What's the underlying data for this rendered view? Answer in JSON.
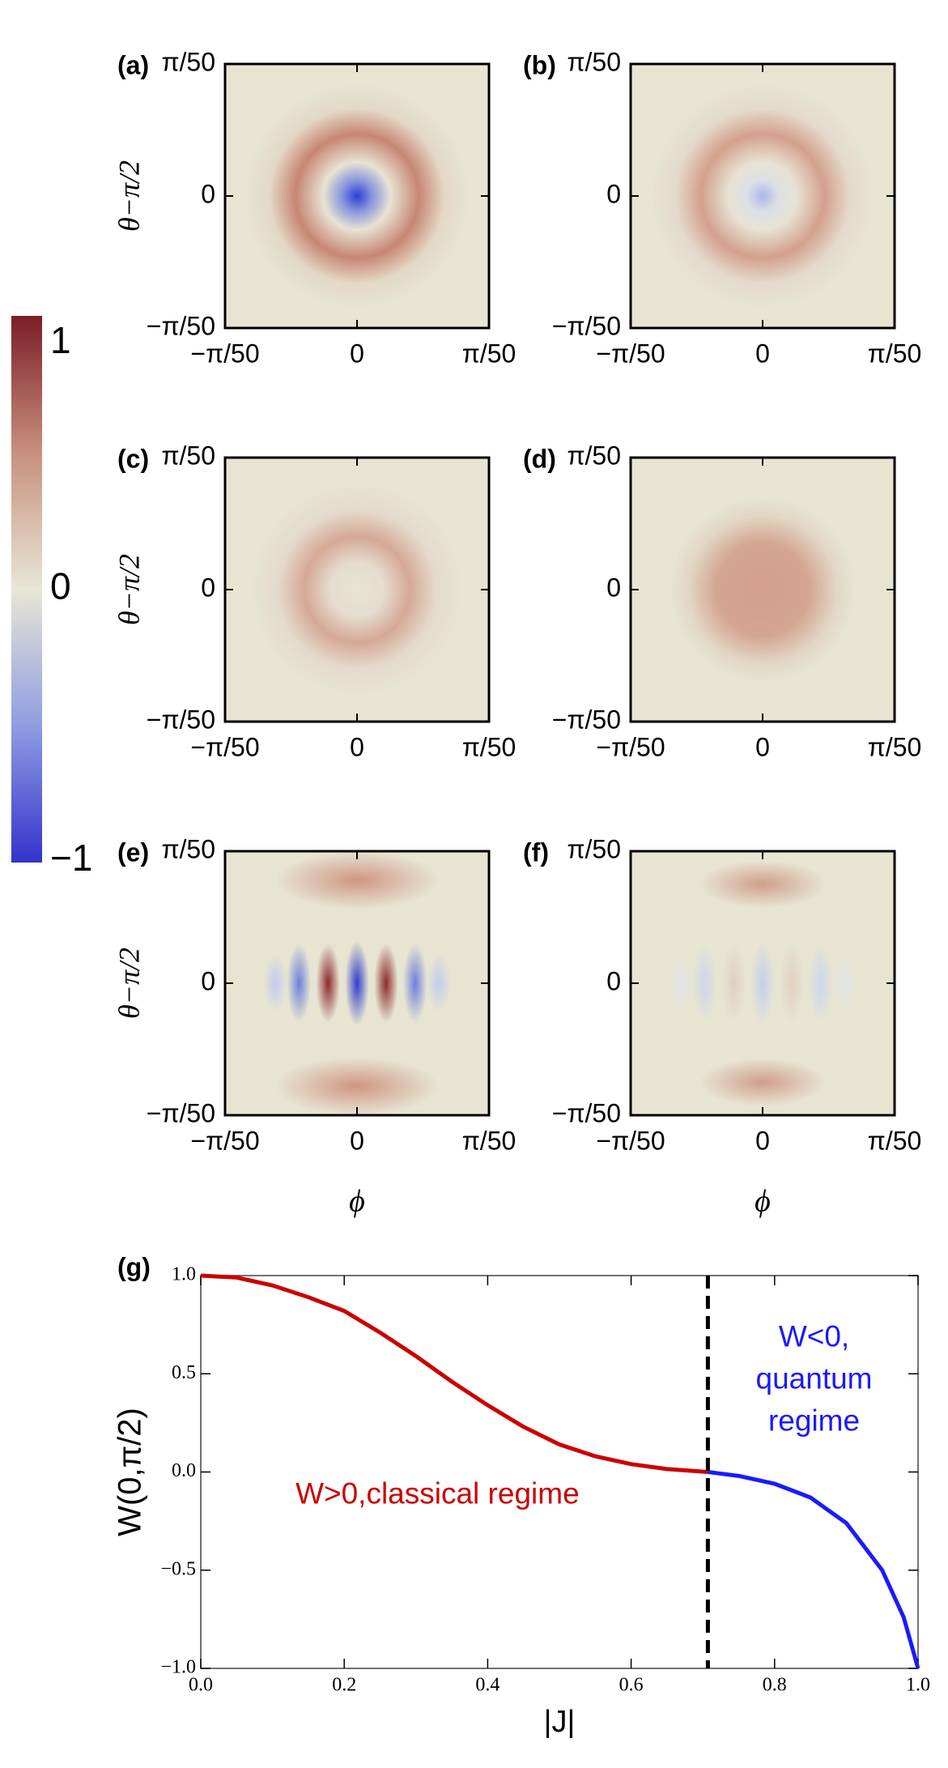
{
  "colorbar": {
    "lim": [
      -1,
      1
    ],
    "ticks": [
      1,
      0,
      {
        "value": -1,
        "label": "−1"
      }
    ]
  },
  "chart_data": [
    {
      "type": "heatmap",
      "panel_label": "(a)",
      "ylabel": "θ−π/2",
      "xlim": [
        -0.0628,
        0.0628
      ],
      "ylim": [
        -0.0628,
        0.0628
      ],
      "xticks": [
        {
          "value": -0.0628,
          "label": "−π/50"
        },
        0,
        {
          "value": 0.0628,
          "label": "π/50"
        }
      ],
      "yticks": [
        {
          "value": -0.0628,
          "label": "−π/50"
        },
        0,
        {
          "value": 0.0628,
          "label": "π/50"
        }
      ]
    },
    {
      "type": "heatmap",
      "panel_label": "(b)",
      "xlim": [
        -0.0628,
        0.0628
      ],
      "ylim": [
        -0.0628,
        0.0628
      ],
      "xticks": [
        {
          "value": -0.0628,
          "label": "−π/50"
        },
        0,
        {
          "value": 0.0628,
          "label": "π/50"
        }
      ],
      "yticks": [
        {
          "value": -0.0628,
          "label": "−π/50"
        },
        0,
        {
          "value": 0.0628,
          "label": "π/50"
        }
      ]
    },
    {
      "type": "heatmap",
      "panel_label": "(c)",
      "ylabel": "θ−π/2",
      "xlim": [
        -0.0628,
        0.0628
      ],
      "ylim": [
        -0.0628,
        0.0628
      ],
      "xticks": [
        {
          "value": -0.0628,
          "label": "−π/50"
        },
        0,
        {
          "value": 0.0628,
          "label": "π/50"
        }
      ],
      "yticks": [
        {
          "value": -0.0628,
          "label": "−π/50"
        },
        0,
        {
          "value": 0.0628,
          "label": "π/50"
        }
      ]
    },
    {
      "type": "heatmap",
      "panel_label": "(d)",
      "xlim": [
        -0.0628,
        0.0628
      ],
      "ylim": [
        -0.0628,
        0.0628
      ],
      "xticks": [
        {
          "value": -0.0628,
          "label": "−π/50"
        },
        0,
        {
          "value": 0.0628,
          "label": "π/50"
        }
      ],
      "yticks": [
        {
          "value": -0.0628,
          "label": "−π/50"
        },
        0,
        {
          "value": 0.0628,
          "label": "π/50"
        }
      ]
    },
    {
      "type": "heatmap",
      "panel_label": "(e)",
      "ylabel": "θ−π/2",
      "xlabel": "ϕ",
      "xlim": [
        -0.0628,
        0.0628
      ],
      "ylim": [
        -0.0628,
        0.0628
      ],
      "xticks": [
        {
          "value": -0.0628,
          "label": "−π/50"
        },
        0,
        {
          "value": 0.0628,
          "label": "π/50"
        }
      ],
      "yticks": [
        {
          "value": -0.0628,
          "label": "−π/50"
        },
        0,
        {
          "value": 0.0628,
          "label": "π/50"
        }
      ]
    },
    {
      "type": "heatmap",
      "panel_label": "(f)",
      "xlabel": "ϕ",
      "xlim": [
        -0.0628,
        0.0628
      ],
      "ylim": [
        -0.0628,
        0.0628
      ],
      "xticks": [
        {
          "value": -0.0628,
          "label": "−π/50"
        },
        0,
        {
          "value": 0.0628,
          "label": "π/50"
        }
      ],
      "yticks": [
        {
          "value": -0.0628,
          "label": "−π/50"
        },
        0,
        {
          "value": 0.0628,
          "label": "π/50"
        }
      ]
    },
    {
      "type": "line",
      "panel_label": "(g)",
      "xlabel": "|J|",
      "ylabel": "W(0,π/2)",
      "xlim": [
        0,
        1
      ],
      "ylim": [
        -1,
        1
      ],
      "xticks": [
        {
          "value": 0,
          "label": "0.0"
        },
        0.2,
        0.4,
        0.6,
        0.8,
        {
          "value": 1,
          "label": "1.0"
        }
      ],
      "yticks": [
        {
          "value": -1,
          "label": "−1.0"
        },
        {
          "value": -0.5,
          "label": "−0.5"
        },
        {
          "value": 0,
          "label": "0.0"
        },
        0.5,
        {
          "value": 1,
          "label": "1.0"
        }
      ],
      "threshold": 0.707,
      "series": [
        {
          "color": "#cc0000",
          "x": [
            0,
            0.05,
            0.1,
            0.15,
            0.2,
            0.25,
            0.3,
            0.35,
            0.4,
            0.45,
            0.5,
            0.55,
            0.6,
            0.65,
            0.707
          ],
          "values": [
            1,
            0.99,
            0.95,
            0.89,
            0.82,
            0.71,
            0.59,
            0.46,
            0.34,
            0.23,
            0.14,
            0.08,
            0.04,
            0.015,
            0
          ]
        },
        {
          "color": "#1a1aff",
          "x": [
            0.707,
            0.75,
            0.8,
            0.85,
            0.9,
            0.95,
            0.98,
            1
          ],
          "values": [
            0,
            -0.02,
            -0.06,
            -0.13,
            -0.26,
            -0.5,
            -0.74,
            -1
          ]
        }
      ],
      "annotations": [
        {
          "lines": [
            "W>0,classical regime"
          ],
          "color": "#cc0000"
        },
        {
          "lines": [
            "W<0,",
            "quantum",
            "regime"
          ],
          "color": "#1a1aff"
        }
      ]
    }
  ]
}
